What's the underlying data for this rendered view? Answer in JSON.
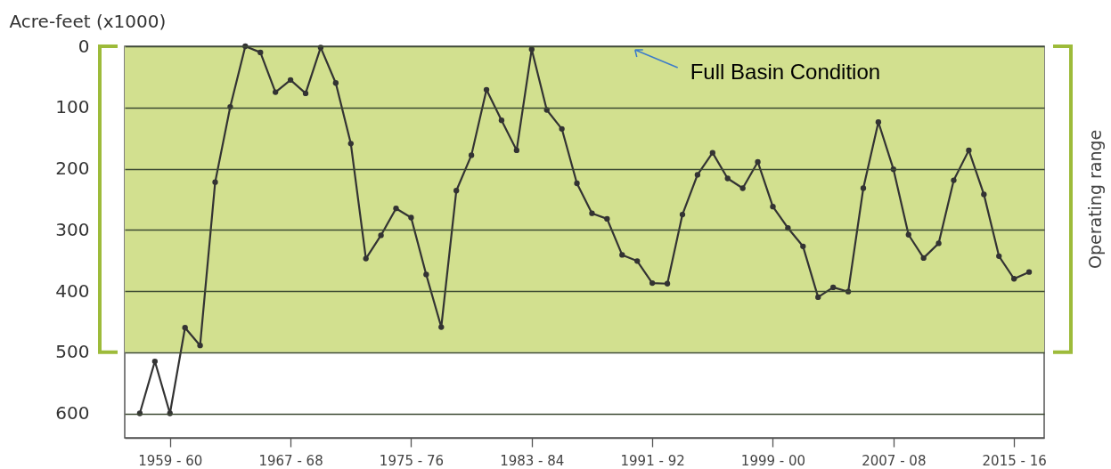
{
  "chart_data": {
    "type": "line",
    "ylabel": "Acre-feet (x1000)",
    "categories": [
      null,
      null,
      "1959 - 60",
      null,
      null,
      null,
      null,
      null,
      null,
      null,
      "1967 - 68",
      null,
      null,
      null,
      null,
      null,
      null,
      null,
      "1975 - 76",
      null,
      null,
      null,
      null,
      null,
      null,
      null,
      "1983 - 84",
      null,
      null,
      null,
      null,
      null,
      null,
      null,
      "1991 - 92",
      null,
      null,
      null,
      null,
      null,
      null,
      null,
      "1999 - 00",
      null,
      null,
      null,
      null,
      null,
      null,
      null,
      "2007 - 08",
      null,
      null,
      null,
      null,
      null,
      null,
      null,
      "2015 - 16",
      null
    ],
    "series": [
      {
        "color": "#333333",
        "values": [
          600,
          515,
          600,
          460,
          489,
          222,
          99,
          0,
          10,
          75,
          55,
          77,
          2,
          60,
          159,
          347,
          309,
          265,
          280,
          373,
          459,
          236,
          178,
          71,
          121,
          170,
          5,
          104,
          135,
          224,
          273,
          282,
          341,
          351,
          387,
          388,
          275,
          210,
          174,
          216,
          232,
          189,
          262,
          297,
          327,
          410,
          394,
          401,
          232,
          124,
          201,
          308,
          346,
          322,
          219,
          170,
          242,
          343,
          380,
          369
        ]
      }
    ],
    "ylim": [
      640,
      0
    ],
    "yticks": [
      0,
      100,
      200,
      300,
      400,
      500,
      600
    ],
    "grid": "y",
    "marker": "circle",
    "bands": [
      {
        "axis": "y",
        "from": 0,
        "to": 500,
        "label": "Operating range",
        "color": "#d2e08f"
      }
    ],
    "annotations": [
      {
        "text": "Full Basin Condition",
        "y": 0
      }
    ]
  }
}
